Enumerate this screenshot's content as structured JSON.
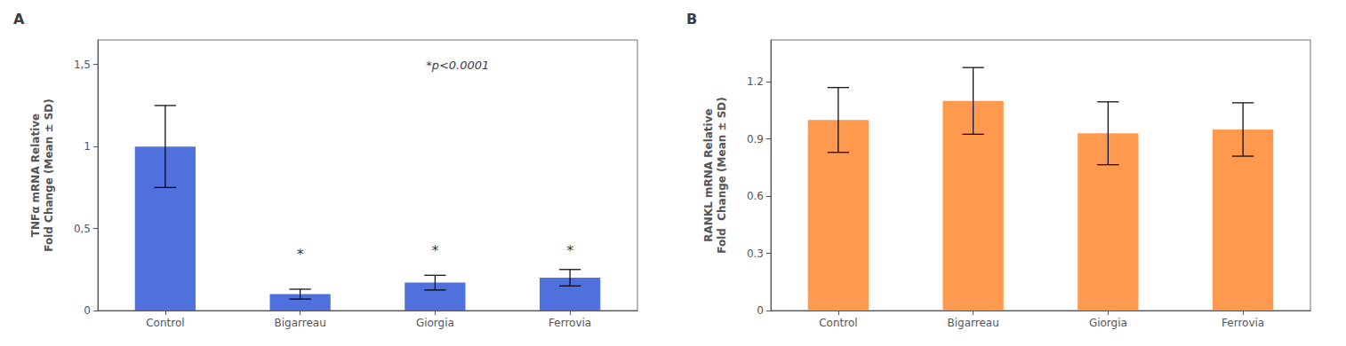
{
  "chart_data": [
    {
      "type": "bar",
      "title": "A",
      "categories": [
        "Control",
        "Bigarreau",
        "Giorgia",
        "Ferrovia"
      ],
      "values": [
        1.0,
        0.1,
        0.17,
        0.2
      ],
      "errors": [
        0.25,
        0.03,
        0.045,
        0.05
      ],
      "ylabel": "TNFα mRNA Relative\nFold Change (Mean ± SD)",
      "ylim": [
        0,
        1.65
      ],
      "yticks": [
        0,
        {
          "value": 0.5,
          "label": "0,5"
        },
        1,
        {
          "value": 1.5,
          "label": "1,5"
        }
      ],
      "annotation": "*p<0.0001",
      "significance": [
        {
          "category": "Bigarreau",
          "y": 0.3,
          "label": "*"
        },
        {
          "category": "Giorgia",
          "y": 0.32,
          "label": "*"
        },
        {
          "category": "Ferrovia",
          "y": 0.32,
          "label": "*"
        }
      ],
      "grid": false
    },
    {
      "type": "bar",
      "title": "B",
      "categories": [
        "Control",
        "Bigarreau",
        "Giorgia",
        "Ferrovia"
      ],
      "values": [
        1.0,
        1.1,
        0.93,
        0.95
      ],
      "errors": [
        0.17,
        0.175,
        0.165,
        0.14
      ],
      "ylabel": "RANKL mRNA Relative\nFold  Change (Mean ± SD)",
      "ylim": [
        0,
        1.42
      ],
      "yticks": [
        0,
        0.3,
        0.6,
        0.9,
        1.2
      ],
      "grid": false
    }
  ]
}
